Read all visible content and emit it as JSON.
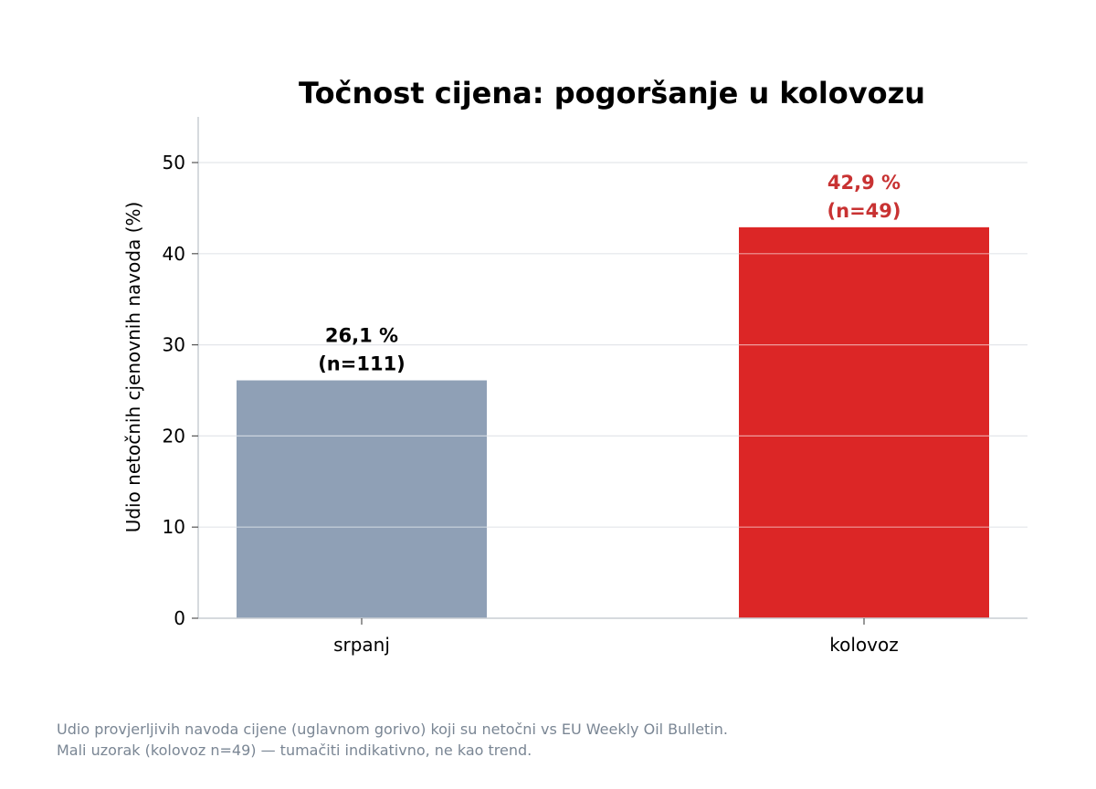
{
  "chart_data": {
    "type": "bar",
    "title": "Točnost cijena: pogoršanje u kolovozu",
    "xlabel": "",
    "ylabel": "Udio netočnih cjenovnih navoda (%)",
    "categories": [
      "srpanj",
      "kolovoz"
    ],
    "values": [
      26.1,
      42.9
    ],
    "data_labels": [
      {
        "value": "26,1 %",
        "n": "(n=111)"
      },
      {
        "value": "42,9 %",
        "n": "(n=49)"
      }
    ],
    "ylim": [
      0,
      55
    ],
    "yticks": [
      0,
      10,
      20,
      30,
      40,
      50
    ],
    "grid": true,
    "legend": "none",
    "colors": [
      "#8fa0b6",
      "#dc2626"
    ],
    "label_colors": [
      "#000000",
      "#c83232"
    ]
  },
  "footnote": {
    "line1": "Udio provjerljivih navoda cijene (uglavnom gorivo) koji su netočni vs EU Weekly Oil Bulletin.",
    "line2": "Mali uzorak (kolovoz n=49) — tumačiti indikativno, ne kao trend."
  }
}
